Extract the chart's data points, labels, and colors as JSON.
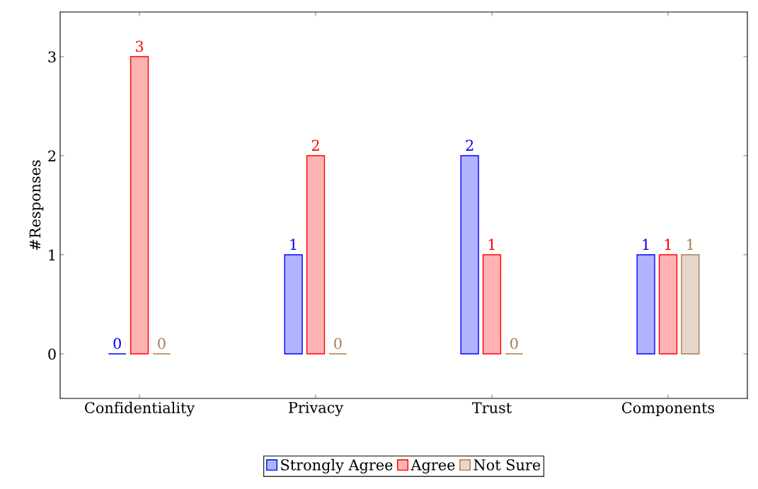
{
  "chart_data": {
    "type": "bar",
    "ylabel": "#Responses",
    "categories": [
      "Confidentiality",
      "Privacy",
      "Trust",
      "Components"
    ],
    "series": [
      {
        "name": "Strongly Agree",
        "color": "#0000ff",
        "values": [
          0,
          1,
          2,
          1
        ]
      },
      {
        "name": "Agree",
        "color": "#ff0000",
        "values": [
          3,
          2,
          1,
          1
        ]
      },
      {
        "name": "Not Sure",
        "color": "#a67c52",
        "values": [
          0,
          0,
          0,
          1
        ]
      }
    ],
    "ylim": [
      -0.45,
      3.45
    ],
    "yticks": [
      0,
      1,
      2,
      3
    ],
    "data_labels": true,
    "grid": false,
    "legend": "bottom"
  }
}
